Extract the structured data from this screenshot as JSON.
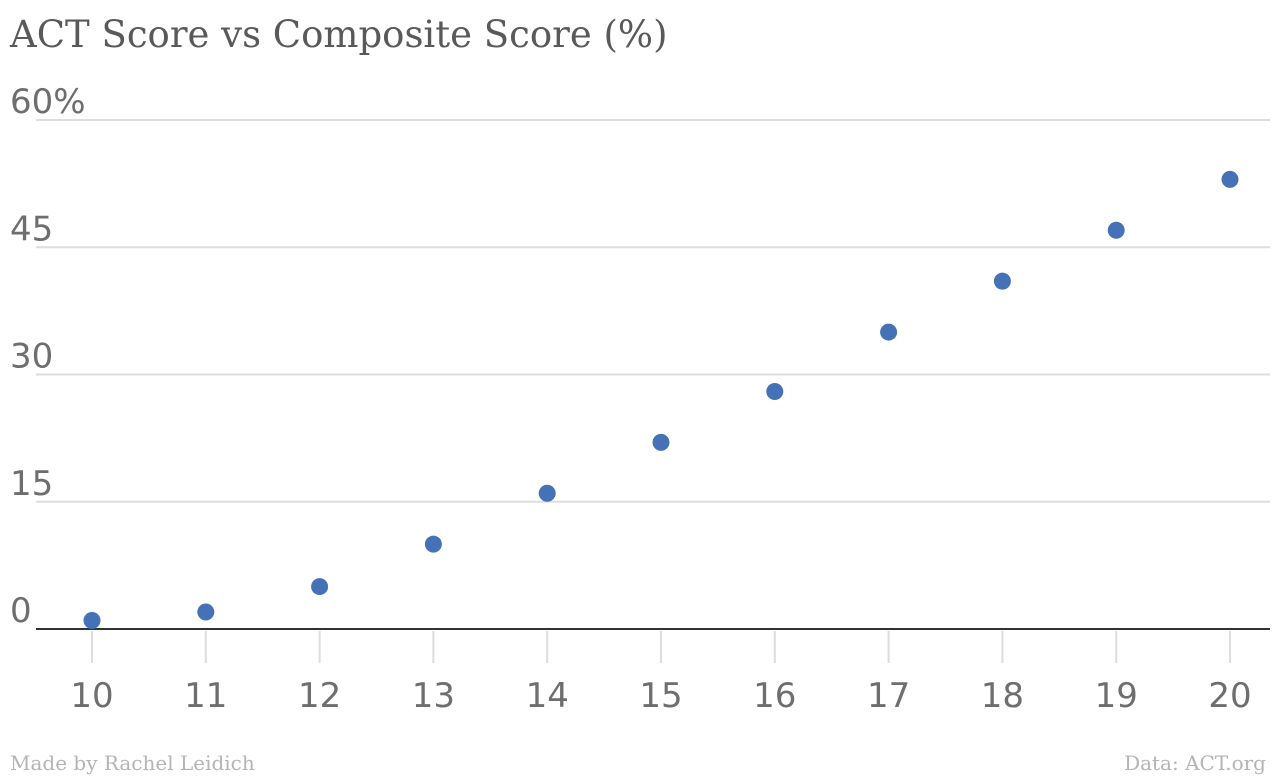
{
  "chart_data": {
    "type": "scatter",
    "title": "ACT Score vs Composite Score (%)",
    "xlabel": "",
    "ylabel": "",
    "x": [
      10,
      11,
      12,
      13,
      14,
      15,
      16,
      17,
      18,
      19,
      20
    ],
    "y": [
      1,
      2,
      5,
      10,
      16,
      22,
      28,
      35,
      41,
      47,
      53
    ],
    "xlim": [
      10,
      20
    ],
    "ylim": [
      0,
      60
    ],
    "y_ticks": [
      0,
      15,
      30,
      45,
      60
    ],
    "y_tick_labels": [
      "0",
      "15",
      "30",
      "45",
      "60%"
    ],
    "x_ticks": [
      10,
      11,
      12,
      13,
      14,
      15,
      16,
      17,
      18,
      19,
      20
    ],
    "x_tick_labels": [
      "10",
      "11",
      "12",
      "13",
      "14",
      "15",
      "16",
      "17",
      "18",
      "19",
      "20"
    ],
    "grid": true,
    "legend": "none",
    "point_color": "#4572b6"
  },
  "footer": {
    "credit": "Made by Rachel Leidich",
    "source": "Data: ACT.org"
  }
}
